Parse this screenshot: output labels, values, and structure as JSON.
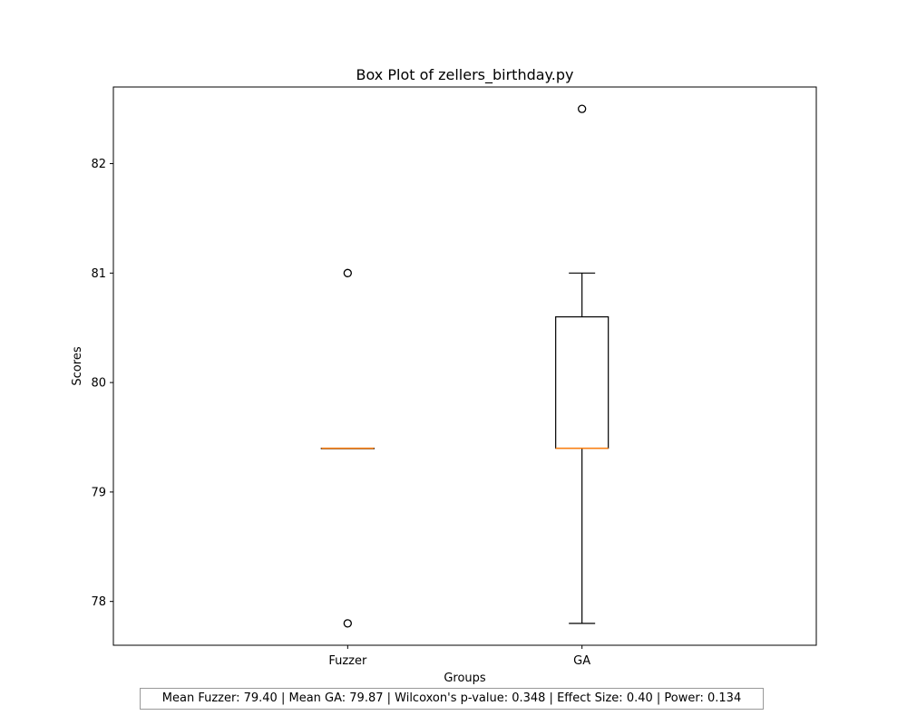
{
  "chart_data": {
    "type": "box",
    "title": "Box Plot of zellers_birthday.py",
    "xlabel": "Groups",
    "ylabel": "Scores",
    "ylim": [
      77.6,
      82.7
    ],
    "yticks": [
      78,
      79,
      80,
      81,
      82
    ],
    "categories": [
      "Fuzzer",
      "GA"
    ],
    "groups": [
      {
        "name": "Fuzzer",
        "whisker_low": 79.4,
        "q1": 79.4,
        "median": 79.4,
        "q3": 79.4,
        "whisker_high": 79.4,
        "outliers": [
          81.0,
          77.8
        ]
      },
      {
        "name": "GA",
        "whisker_low": 77.8,
        "q1": 79.4,
        "median": 79.4,
        "q3": 80.6,
        "whisker_high": 81.0,
        "outliers": [
          82.5
        ]
      }
    ],
    "box_color": "#000000",
    "median_color": "#ff7f0e"
  },
  "stats": {
    "text": "Mean Fuzzer: 79.40 | Mean GA: 79.87 | Wilcoxon's p-value: 0.348 | Effect Size: 0.40 | Power: 0.134"
  }
}
